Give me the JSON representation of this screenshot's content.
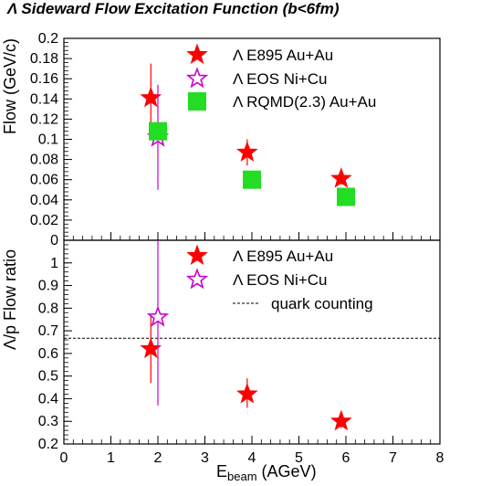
{
  "chart_data": [
    {
      "type": "scatter",
      "title": "Λ Sideward Flow Excitation Function (b<6fm)",
      "ylabel": "Flow (GeV/c)",
      "xlabel": "E",
      "xlabel_sub": "beam",
      "xlabel_unit": " (AGeV)",
      "xlim": [
        0,
        8
      ],
      "ylim": [
        0,
        0.2
      ],
      "xticks": [
        "0",
        "1",
        "2",
        "3",
        "4",
        "5",
        "6",
        "7",
        "8"
      ],
      "yticks": [
        "0",
        "0.02",
        "0.04",
        "0.06",
        "0.08",
        "0.1",
        "0.12",
        "0.14",
        "0.16",
        "0.18",
        "0.2"
      ],
      "legend_position": "top-right",
      "series": [
        {
          "name": "Λ E895 Au+Au",
          "marker": "filled-star",
          "color": "#ff0000",
          "points": [
            {
              "x": 1.85,
              "y": 0.141,
              "ylo": 0.107,
              "yhi": 0.175
            },
            {
              "x": 3.9,
              "y": 0.087,
              "ylo": 0.074,
              "yhi": 0.1
            },
            {
              "x": 5.9,
              "y": 0.061,
              "ylo": 0.055,
              "yhi": 0.067
            }
          ]
        },
        {
          "name": "Λ EOS Ni+Cu",
          "marker": "open-star",
          "color": "#cc00cc",
          "points": [
            {
              "x": 2.0,
              "y": 0.102,
              "ylo": 0.05,
              "yhi": 0.154
            }
          ]
        },
        {
          "name": "Λ RQMD(2.3) Au+Au",
          "marker": "filled-square",
          "color": "#22dd22",
          "points": [
            {
              "x": 2.0,
              "y": 0.108
            },
            {
              "x": 4.0,
              "y": 0.06
            },
            {
              "x": 6.0,
              "y": 0.043
            }
          ]
        }
      ]
    },
    {
      "type": "scatter",
      "ylabel": "Λ/p Flow ratio",
      "xlim": [
        0,
        8
      ],
      "ylim": [
        0.2,
        1.1
      ],
      "xticks": [
        "0",
        "1",
        "2",
        "3",
        "4",
        "5",
        "6",
        "7",
        "8"
      ],
      "yticks": [
        "0.2",
        "0.3",
        "0.4",
        "0.5",
        "0.6",
        "0.7",
        "0.8",
        "0.9",
        "1"
      ],
      "legend_position": "top-right",
      "reference_line": {
        "name": "quark counting",
        "y": 0.667,
        "style": "dashed"
      },
      "series": [
        {
          "name": "Λ E895 Au+Au",
          "marker": "filled-star",
          "color": "#ff0000",
          "points": [
            {
              "x": 1.85,
              "y": 0.62,
              "ylo": 0.47,
              "yhi": 0.77
            },
            {
              "x": 3.9,
              "y": 0.42,
              "ylo": 0.36,
              "yhi": 0.49
            },
            {
              "x": 5.9,
              "y": 0.3,
              "ylo": 0.27,
              "yhi": 0.33
            }
          ]
        },
        {
          "name": "Λ EOS Ni+Cu",
          "marker": "open-star",
          "color": "#cc00cc",
          "points": [
            {
              "x": 2.0,
              "y": 0.76,
              "ylo": 0.37,
              "yhi": 1.1
            }
          ]
        }
      ]
    }
  ]
}
